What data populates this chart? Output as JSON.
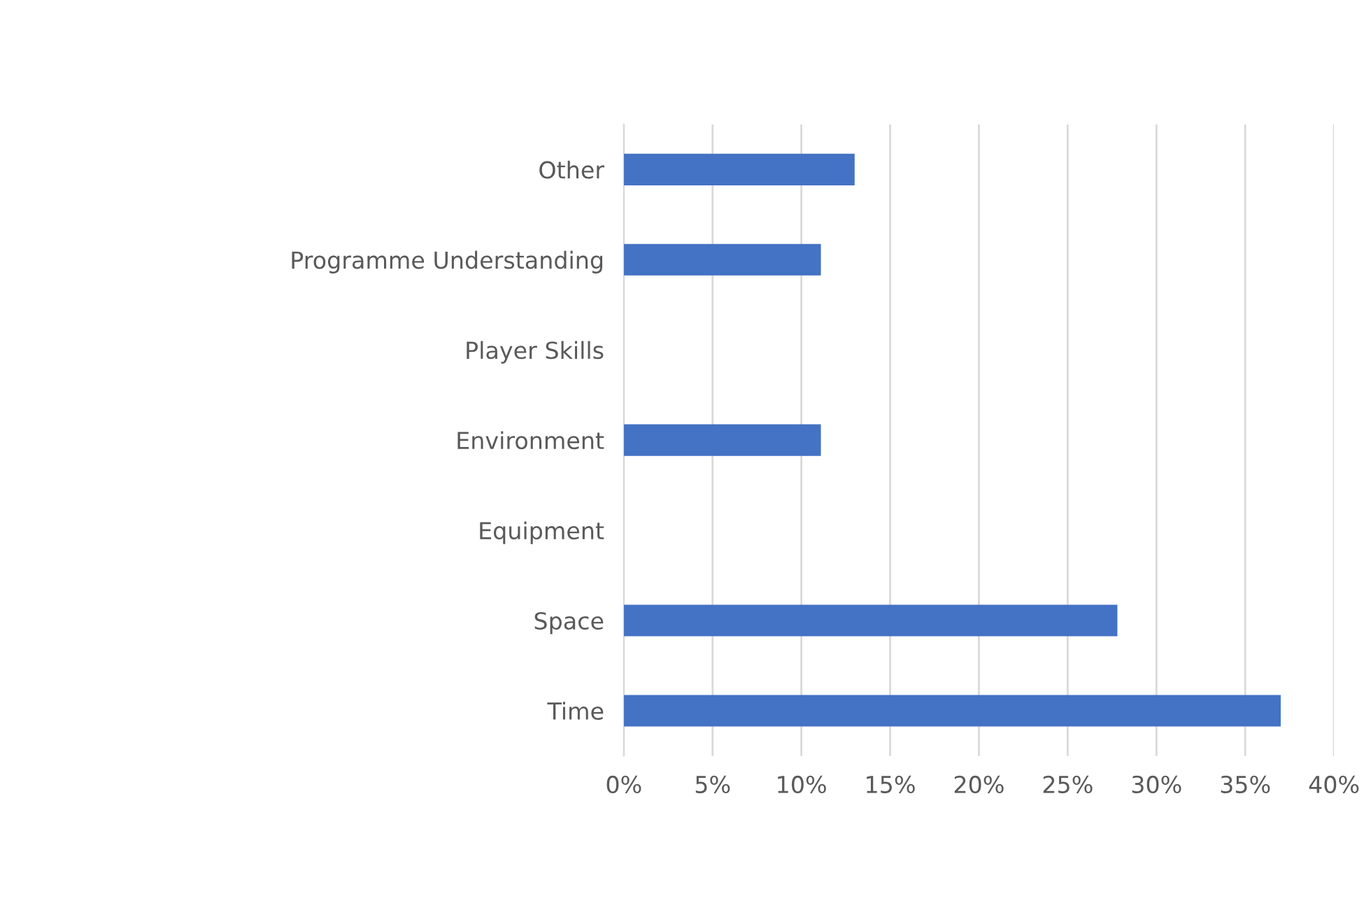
{
  "chart_data": {
    "type": "bar",
    "orientation": "horizontal",
    "categories": [
      "Other",
      "Programme Understanding",
      "Player Skills",
      "Environment",
      "Equipment",
      "Space",
      "Time"
    ],
    "values": [
      13.0,
      11.1,
      0,
      11.1,
      0,
      27.8,
      37.0
    ],
    "color": "#4472c4",
    "xlim": [
      0,
      40
    ],
    "xticks": [
      {
        "value": 0,
        "label": "0%"
      },
      {
        "value": 5,
        "label": "5%"
      },
      {
        "value": 10,
        "label": "10%"
      },
      {
        "value": 15,
        "label": "15%"
      },
      {
        "value": 20,
        "label": "20%"
      },
      {
        "value": 25,
        "label": "25%"
      },
      {
        "value": 30,
        "label": "30%"
      },
      {
        "value": 35,
        "label": "35%"
      },
      {
        "value": 40,
        "label": "40%"
      }
    ],
    "grid": "x"
  }
}
